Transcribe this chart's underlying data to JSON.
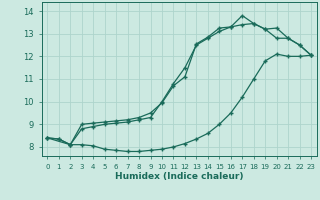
{
  "xlabel": "Humidex (Indice chaleur)",
  "bg_color": "#cce9e1",
  "line_color": "#1a6b5a",
  "grid_color": "#aed4cc",
  "xlim": [
    -0.5,
    23.5
  ],
  "ylim": [
    7.6,
    14.4
  ],
  "yticks": [
    8,
    9,
    10,
    11,
    12,
    13,
    14
  ],
  "xticks": [
    0,
    1,
    2,
    3,
    4,
    5,
    6,
    7,
    8,
    9,
    10,
    11,
    12,
    13,
    14,
    15,
    16,
    17,
    18,
    19,
    20,
    21,
    22,
    23
  ],
  "line1_x": [
    0,
    1,
    2,
    3,
    4,
    5,
    6,
    7,
    8,
    9,
    10,
    11,
    12,
    13,
    14,
    15,
    16,
    17,
    18,
    19,
    20,
    21,
    22,
    23
  ],
  "line1_y": [
    8.4,
    8.35,
    8.1,
    8.1,
    8.05,
    7.9,
    7.85,
    7.8,
    7.8,
    7.85,
    7.9,
    8.0,
    8.15,
    8.35,
    8.6,
    9.0,
    9.5,
    10.2,
    11.0,
    11.8,
    12.1,
    12.0,
    12.0,
    12.05
  ],
  "line2_x": [
    0,
    1,
    2,
    3,
    4,
    5,
    6,
    7,
    8,
    9,
    10,
    11,
    12,
    13,
    14,
    15,
    16,
    17,
    18,
    19,
    20,
    21,
    22,
    23
  ],
  "line2_y": [
    8.4,
    8.35,
    8.1,
    8.8,
    8.9,
    9.0,
    9.05,
    9.1,
    9.2,
    9.3,
    10.0,
    10.8,
    11.5,
    12.5,
    12.8,
    13.1,
    13.3,
    13.4,
    13.45,
    13.2,
    12.8,
    12.8,
    12.5,
    12.05
  ],
  "line3_x": [
    0,
    2,
    3,
    4,
    5,
    6,
    7,
    8,
    9,
    10,
    11,
    12,
    13,
    14,
    15,
    16,
    17,
    18,
    19,
    20,
    21,
    22,
    23
  ],
  "line3_y": [
    8.4,
    8.1,
    9.0,
    9.05,
    9.1,
    9.15,
    9.2,
    9.3,
    9.5,
    9.95,
    10.7,
    11.1,
    12.55,
    12.85,
    13.25,
    13.3,
    13.8,
    13.45,
    13.2,
    13.25,
    12.8,
    12.5,
    12.05
  ]
}
